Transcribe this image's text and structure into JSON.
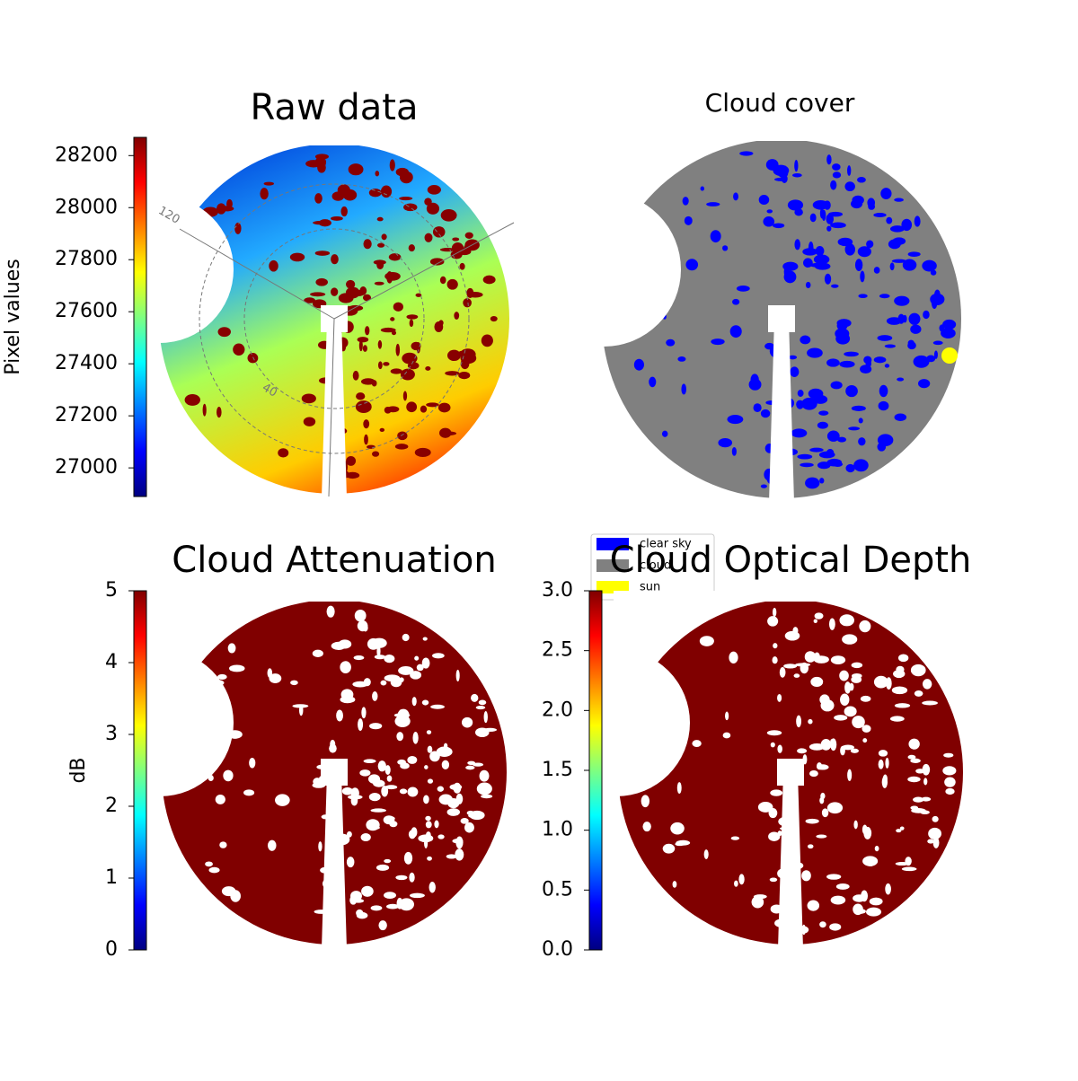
{
  "chart_data": [
    {
      "type": "image",
      "title": "Raw data",
      "annotations": [
        "120",
        "40"
      ],
      "colorbar": {
        "label": "Pixel values",
        "colormap": "jet",
        "lim": [
          26890,
          28270
        ],
        "ticks": [
          27000,
          27200,
          27400,
          27600,
          27800,
          28000,
          28200
        ]
      }
    },
    {
      "type": "image",
      "title": "Cloud cover",
      "legend": {
        "location": "lower left",
        "series": [
          {
            "name": "clear sky",
            "color": "#0000ff"
          },
          {
            "name": "cloud",
            "color": "#808080"
          },
          {
            "name": "sun",
            "color": "#ffff00"
          }
        ]
      }
    },
    {
      "type": "image",
      "title": "Cloud Attenuation",
      "colorbar": {
        "label": "dB",
        "colormap": "jet",
        "lim": [
          0,
          5
        ],
        "ticks": [
          0,
          1,
          2,
          3,
          4,
          5
        ]
      }
    },
    {
      "type": "image",
      "title": "Cloud Optical Depth",
      "colorbar": {
        "colormap": "jet",
        "lim": [
          0,
          3
        ],
        "ticks": [
          {
            "value": 0,
            "label": "0.0"
          },
          0.5,
          {
            "value": 1,
            "label": "1.0"
          },
          1.5,
          {
            "value": 2,
            "label": "2.0"
          },
          2.5,
          {
            "value": 3,
            "label": "3.0"
          }
        ]
      }
    }
  ]
}
